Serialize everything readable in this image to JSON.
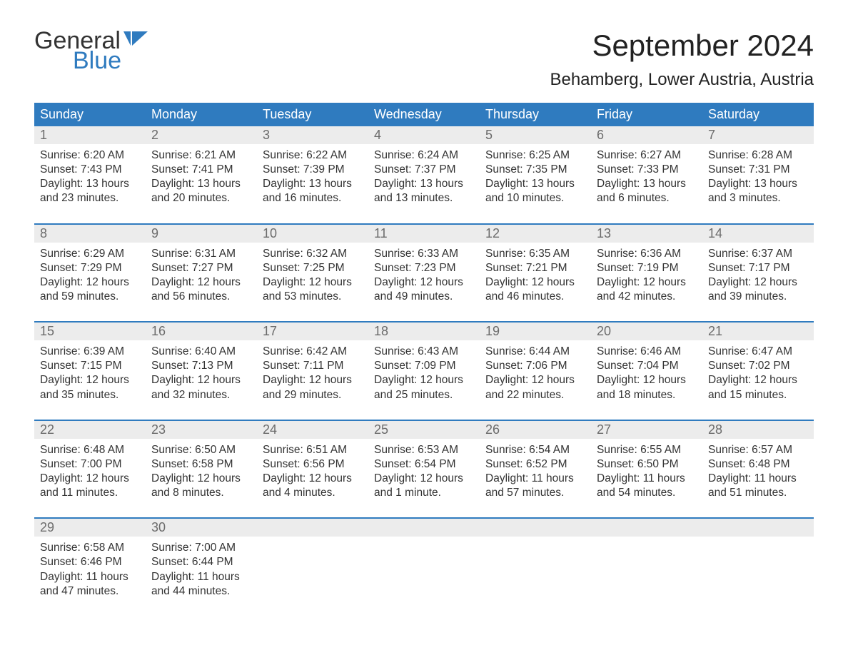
{
  "logo": {
    "word1": "General",
    "word2": "Blue",
    "text_color": "#333333",
    "blue_color": "#2f7bbf"
  },
  "title": "September 2024",
  "location": "Behamberg, Lower Austria, Austria",
  "colors": {
    "header_bg": "#2f7bbf",
    "header_text": "#ffffff",
    "daynum_bg": "#ececec",
    "daynum_text": "#6b6b6b",
    "body_text": "#333333",
    "background": "#ffffff"
  },
  "font": {
    "family": "Arial",
    "title_size_pt": 32,
    "location_size_pt": 18,
    "dow_size_pt": 14,
    "body_size_pt": 12
  },
  "daysOfWeek": [
    "Sunday",
    "Monday",
    "Tuesday",
    "Wednesday",
    "Thursday",
    "Friday",
    "Saturday"
  ],
  "weeks": [
    [
      {
        "num": "1",
        "sunrise": "Sunrise: 6:20 AM",
        "sunset": "Sunset: 7:43 PM",
        "dl1": "Daylight: 13 hours",
        "dl2": "and 23 minutes."
      },
      {
        "num": "2",
        "sunrise": "Sunrise: 6:21 AM",
        "sunset": "Sunset: 7:41 PM",
        "dl1": "Daylight: 13 hours",
        "dl2": "and 20 minutes."
      },
      {
        "num": "3",
        "sunrise": "Sunrise: 6:22 AM",
        "sunset": "Sunset: 7:39 PM",
        "dl1": "Daylight: 13 hours",
        "dl2": "and 16 minutes."
      },
      {
        "num": "4",
        "sunrise": "Sunrise: 6:24 AM",
        "sunset": "Sunset: 7:37 PM",
        "dl1": "Daylight: 13 hours",
        "dl2": "and 13 minutes."
      },
      {
        "num": "5",
        "sunrise": "Sunrise: 6:25 AM",
        "sunset": "Sunset: 7:35 PM",
        "dl1": "Daylight: 13 hours",
        "dl2": "and 10 minutes."
      },
      {
        "num": "6",
        "sunrise": "Sunrise: 6:27 AM",
        "sunset": "Sunset: 7:33 PM",
        "dl1": "Daylight: 13 hours",
        "dl2": "and 6 minutes."
      },
      {
        "num": "7",
        "sunrise": "Sunrise: 6:28 AM",
        "sunset": "Sunset: 7:31 PM",
        "dl1": "Daylight: 13 hours",
        "dl2": "and 3 minutes."
      }
    ],
    [
      {
        "num": "8",
        "sunrise": "Sunrise: 6:29 AM",
        "sunset": "Sunset: 7:29 PM",
        "dl1": "Daylight: 12 hours",
        "dl2": "and 59 minutes."
      },
      {
        "num": "9",
        "sunrise": "Sunrise: 6:31 AM",
        "sunset": "Sunset: 7:27 PM",
        "dl1": "Daylight: 12 hours",
        "dl2": "and 56 minutes."
      },
      {
        "num": "10",
        "sunrise": "Sunrise: 6:32 AM",
        "sunset": "Sunset: 7:25 PM",
        "dl1": "Daylight: 12 hours",
        "dl2": "and 53 minutes."
      },
      {
        "num": "11",
        "sunrise": "Sunrise: 6:33 AM",
        "sunset": "Sunset: 7:23 PM",
        "dl1": "Daylight: 12 hours",
        "dl2": "and 49 minutes."
      },
      {
        "num": "12",
        "sunrise": "Sunrise: 6:35 AM",
        "sunset": "Sunset: 7:21 PM",
        "dl1": "Daylight: 12 hours",
        "dl2": "and 46 minutes."
      },
      {
        "num": "13",
        "sunrise": "Sunrise: 6:36 AM",
        "sunset": "Sunset: 7:19 PM",
        "dl1": "Daylight: 12 hours",
        "dl2": "and 42 minutes."
      },
      {
        "num": "14",
        "sunrise": "Sunrise: 6:37 AM",
        "sunset": "Sunset: 7:17 PM",
        "dl1": "Daylight: 12 hours",
        "dl2": "and 39 minutes."
      }
    ],
    [
      {
        "num": "15",
        "sunrise": "Sunrise: 6:39 AM",
        "sunset": "Sunset: 7:15 PM",
        "dl1": "Daylight: 12 hours",
        "dl2": "and 35 minutes."
      },
      {
        "num": "16",
        "sunrise": "Sunrise: 6:40 AM",
        "sunset": "Sunset: 7:13 PM",
        "dl1": "Daylight: 12 hours",
        "dl2": "and 32 minutes."
      },
      {
        "num": "17",
        "sunrise": "Sunrise: 6:42 AM",
        "sunset": "Sunset: 7:11 PM",
        "dl1": "Daylight: 12 hours",
        "dl2": "and 29 minutes."
      },
      {
        "num": "18",
        "sunrise": "Sunrise: 6:43 AM",
        "sunset": "Sunset: 7:09 PM",
        "dl1": "Daylight: 12 hours",
        "dl2": "and 25 minutes."
      },
      {
        "num": "19",
        "sunrise": "Sunrise: 6:44 AM",
        "sunset": "Sunset: 7:06 PM",
        "dl1": "Daylight: 12 hours",
        "dl2": "and 22 minutes."
      },
      {
        "num": "20",
        "sunrise": "Sunrise: 6:46 AM",
        "sunset": "Sunset: 7:04 PM",
        "dl1": "Daylight: 12 hours",
        "dl2": "and 18 minutes."
      },
      {
        "num": "21",
        "sunrise": "Sunrise: 6:47 AM",
        "sunset": "Sunset: 7:02 PM",
        "dl1": "Daylight: 12 hours",
        "dl2": "and 15 minutes."
      }
    ],
    [
      {
        "num": "22",
        "sunrise": "Sunrise: 6:48 AM",
        "sunset": "Sunset: 7:00 PM",
        "dl1": "Daylight: 12 hours",
        "dl2": "and 11 minutes."
      },
      {
        "num": "23",
        "sunrise": "Sunrise: 6:50 AM",
        "sunset": "Sunset: 6:58 PM",
        "dl1": "Daylight: 12 hours",
        "dl2": "and 8 minutes."
      },
      {
        "num": "24",
        "sunrise": "Sunrise: 6:51 AM",
        "sunset": "Sunset: 6:56 PM",
        "dl1": "Daylight: 12 hours",
        "dl2": "and 4 minutes."
      },
      {
        "num": "25",
        "sunrise": "Sunrise: 6:53 AM",
        "sunset": "Sunset: 6:54 PM",
        "dl1": "Daylight: 12 hours",
        "dl2": "and 1 minute."
      },
      {
        "num": "26",
        "sunrise": "Sunrise: 6:54 AM",
        "sunset": "Sunset: 6:52 PM",
        "dl1": "Daylight: 11 hours",
        "dl2": "and 57 minutes."
      },
      {
        "num": "27",
        "sunrise": "Sunrise: 6:55 AM",
        "sunset": "Sunset: 6:50 PM",
        "dl1": "Daylight: 11 hours",
        "dl2": "and 54 minutes."
      },
      {
        "num": "28",
        "sunrise": "Sunrise: 6:57 AM",
        "sunset": "Sunset: 6:48 PM",
        "dl1": "Daylight: 11 hours",
        "dl2": "and 51 minutes."
      }
    ],
    [
      {
        "num": "29",
        "sunrise": "Sunrise: 6:58 AM",
        "sunset": "Sunset: 6:46 PM",
        "dl1": "Daylight: 11 hours",
        "dl2": "and 47 minutes."
      },
      {
        "num": "30",
        "sunrise": "Sunrise: 7:00 AM",
        "sunset": "Sunset: 6:44 PM",
        "dl1": "Daylight: 11 hours",
        "dl2": "and 44 minutes."
      },
      null,
      null,
      null,
      null,
      null
    ]
  ]
}
